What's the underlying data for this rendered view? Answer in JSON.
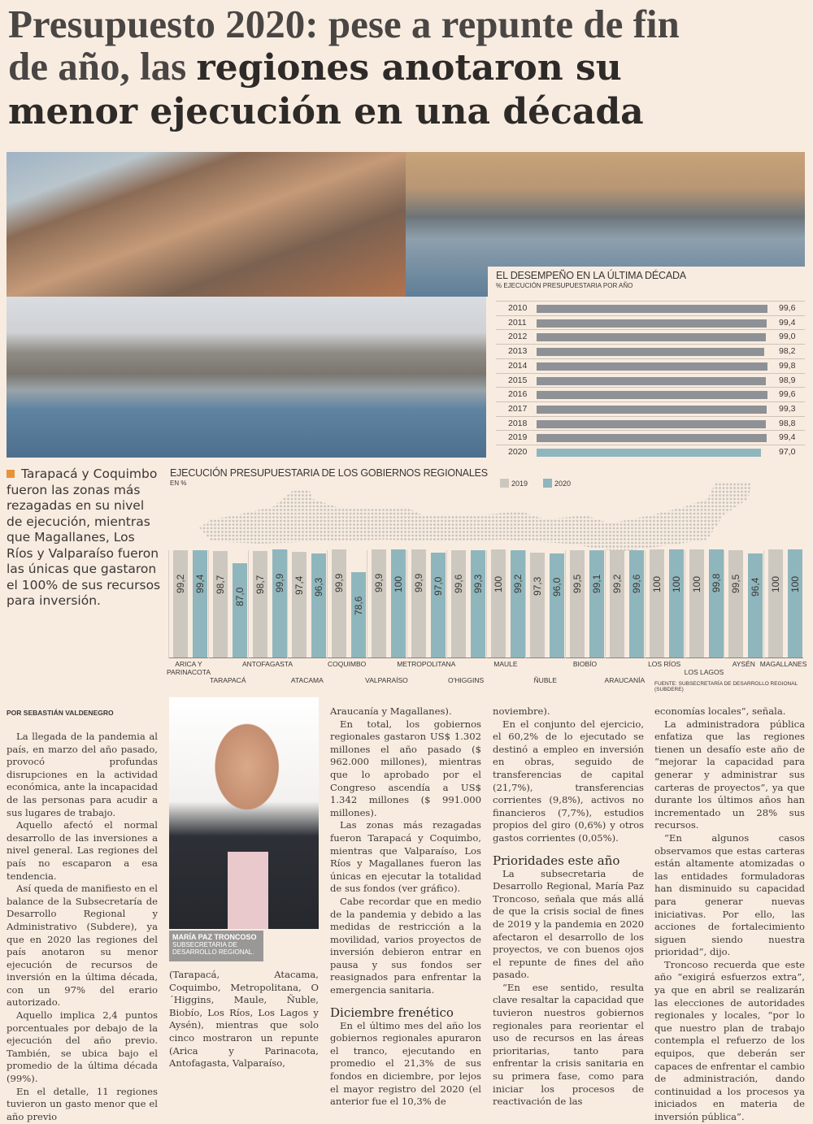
{
  "headline": {
    "part1": "Presupuesto 2020: pese a repunte de fin de año, las ",
    "part2": "regiones anotaron su menor ejecución en una década"
  },
  "pull_quote": "Tarapacá y Coquimbo fueron las zonas más rezagadas en su nivel de ejecución, mientras que Magallanes, Los Ríos y Valparaíso fueron las únicas que gastaron el 100% de sus recursos para inversión.",
  "colors": {
    "bar_2019": "#cdc8bf",
    "bar_2020": "#8fb6bd",
    "decade_bar": "#8e9195",
    "accent": "#e8923a",
    "background": "#f8ece1"
  },
  "chart_data": [
    {
      "type": "bar",
      "title": "EL DESEMPEÑO EN LA ÚLTIMA DÉCADA",
      "subtitle": "% EJECUCIÓN PRESUPUESTARIA POR AÑO",
      "orientation": "horizontal",
      "categories": [
        "2010",
        "2011",
        "2012",
        "2013",
        "2014",
        "2015",
        "2016",
        "2017",
        "2018",
        "2019",
        "2020"
      ],
      "values": [
        99.6,
        99.4,
        99.0,
        98.2,
        99.8,
        98.9,
        99.6,
        99.3,
        98.8,
        99.4,
        97.0
      ],
      "labels": [
        "99,6",
        "99,4",
        "99,0",
        "98,2",
        "99,8",
        "98,9",
        "99,6",
        "99,3",
        "98,8",
        "99,4",
        "97,0"
      ],
      "xlim": [
        0,
        100
      ]
    },
    {
      "type": "bar",
      "title": "EJECUCIÓN PRESUPUESTARIA DE LOS GOBIERNOS REGIONALES",
      "subtitle": "EN %",
      "ylim": [
        0,
        100
      ],
      "legend": "top-right",
      "categories": [
        "ARICA Y PARINACOTA",
        "TARAPACÁ",
        "ANTOFAGASTA",
        "ATACAMA",
        "COQUIMBO",
        "VALPARAÍSO",
        "METROPOLITANA",
        "O'HIGGINS",
        "MAULE",
        "ÑUBLE",
        "BIOBÍO",
        "ARAUCANÍA",
        "LOS RÍOS",
        "LOS LAGOS",
        "AYSÉN",
        "MAGALLANES"
      ],
      "series": [
        {
          "name": "2019",
          "values": [
            99.2,
            98.7,
            98.7,
            97.4,
            99.9,
            99.9,
            99.9,
            99.6,
            100,
            97.3,
            99.5,
            99.2,
            100,
            100,
            99.5,
            100
          ],
          "labels": [
            "99,2",
            "98,7",
            "98,7",
            "97,4",
            "99,9",
            "99,9",
            "99,9",
            "99,6",
            "100",
            "97,3",
            "99,5",
            "99,2",
            "100",
            "100",
            "99,5",
            "100"
          ]
        },
        {
          "name": "2020",
          "values": [
            99.4,
            87.0,
            99.9,
            96.3,
            78.6,
            100,
            97.0,
            99.3,
            99.2,
            96.0,
            99.1,
            99.6,
            100,
            99.8,
            96.4,
            100
          ],
          "labels": [
            "99,4",
            "87,0",
            "99,9",
            "96,3",
            "78,6",
            "100",
            "97,0",
            "99,3",
            "99,2",
            "96,0",
            "99,1",
            "99,6",
            "100",
            "99,8",
            "96,4",
            "100"
          ]
        }
      ],
      "source": "FUENTE: SUBSECRETARÍA DE DESARROLLO REGIONAL (SUBDERE)"
    }
  ],
  "byline": "POR SEBASTIÁN VALDENEGRO",
  "caption": {
    "name": "MARÍA PAZ TRONCOSO",
    "role": "SUBSECRETARIA DE DESARROLLO REGIONAL."
  },
  "columns": {
    "c1": [
      "La llegada de la pandemia al país, en marzo del año pasado, provocó profundas disrupciones en la actividad económica, ante la incapacidad de las personas para acudir a sus lugares de trabajo.",
      "Aquello afectó el normal desarrollo de las inversiones a nivel general. Las regiones del país no escaparon a esa tendencia.",
      "Así queda de manifiesto en el balance de la Subsecretaría de Desarrollo Regional y Administrativo (Subdere), ya que en 2020 las regiones del país anotaron su menor ejecución de recursos de inversión en la última década, con un 97% del erario autorizado.",
      "Aquello implica 2,4 puntos porcentuales por debajo de la ejecución del año previo. También, se ubica bajo el promedio de la última década (99%).",
      "En el detalle, 11 regiones tuvieron un gasto menor que el año previo"
    ],
    "c2": [
      "(Tarapacá, Atacama, Coquimbo, Metropolitana, O´Higgins, Maule, Ñuble, Biobío, Los Ríos, Los Lagos y Aysén), mientras que solo cinco mostraron un repunte (Arica y Parinacota, Antofagasta, Valparaíso,"
    ],
    "c3": [
      "Araucanía y Magallanes).",
      "En total, los gobiernos regionales gastaron US$ 1.302 millones el año pasado ($ 962.000 millones), mientras que lo aprobado por el Congreso ascendía a US$ 1.342 millones ($ 991.000 millones).",
      "Las zonas más rezagadas fueron Tarapacá y Coquimbo, mientras que Valparaíso, Los Ríos y Magallanes fueron las únicas en ejecutar la totalidad de sus fondos (ver gráfico).",
      "Cabe recordar que en medio de la pandemia y debido a las medidas de restricción a la movilidad, varios proyectos de inversión debieron entrar en pausa y sus fondos ser reasignados para enfrentar la emergencia sanitaria."
    ],
    "h_diciembre": "Diciembre frenético",
    "c3b": [
      "En el último mes del año los gobiernos regionales apuraron el tranco, ejecutando en promedio el 21,3% de sus fondos en diciembre, por lejos el mayor registro del 2020 (el anterior fue el 10,3% de"
    ],
    "c4": [
      "noviembre).",
      "En el conjunto del ejercicio, el 60,2% de lo ejecutado se destinó a empleo en inversión en obras, seguido de transferencias de capital (21,7%), transferencias corrientes (9,8%), activos no financieros (7,7%), estudios propios del giro (0,6%) y otros gastos corrientes (0,05%)."
    ],
    "h_prioridades": "Prioridades este año",
    "c4b": [
      "La subsecretaria de Desarrollo Regional, María Paz Troncoso, señala que más allá de que la crisis social de fines de 2019 y la pandemia en 2020 afectaron el desarrollo de los proyectos, ve con buenos ojos el repunte de fines del año pasado.",
      "“En ese sentido, resulta clave resaltar la capacidad que tuvieron nuestros gobiernos regionales para reorientar el uso de recursos en las áreas prioritarias, tanto para enfrentar la crisis sanitaria en su primera fase, como para iniciar los procesos de reactivación de las"
    ],
    "c5": [
      "economías locales”, señala.",
      "La administradora pública enfatiza que las regiones tienen un desafío este año de “mejorar la capacidad para generar y administrar sus carteras de proyectos”, ya que durante los últimos años han incrementado un 28% sus recursos.",
      "“En algunos casos observamos que estas carteras están altamente atomizadas o las entidades formuladoras han disminuido su capacidad para generar nuevas iniciativas. Por ello, las acciones de fortalecimiento siguen siendo nuestra prioridad”, dijo.",
      "Troncoso recuerda que este año “exigirá esfuerzos extra”, ya que en abril se realizarán las elecciones de autoridades regionales y locales, “por lo que nuestro plan de trabajo contempla el refuerzo de los equipos, que deberán ser capaces de enfrentar el cambio de administración, dando continuidad a los procesos ya iniciados en materia de inversión pública”."
    ]
  }
}
